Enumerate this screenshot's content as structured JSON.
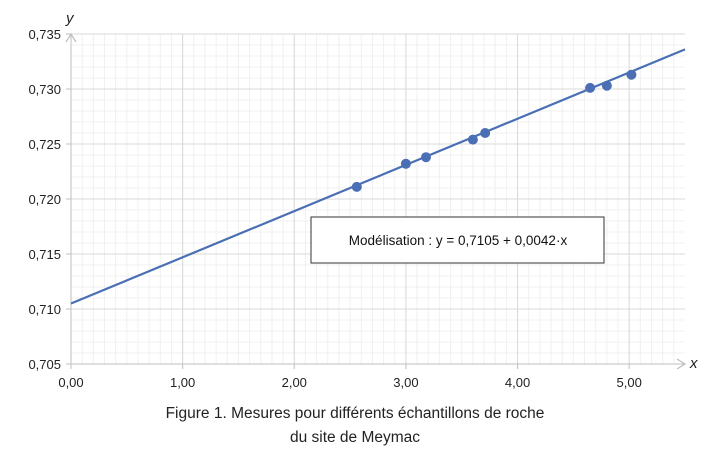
{
  "chart_data": {
    "type": "scatter",
    "xlabel": "x",
    "ylabel": "y",
    "xlim": [
      0,
      5.5
    ],
    "ylim": [
      0.705,
      0.735
    ],
    "x_ticks": [
      0,
      1,
      2,
      3,
      4,
      5
    ],
    "x_tick_labels": [
      "0,00",
      "1,00",
      "2,00",
      "3,00",
      "4,00",
      "5,00"
    ],
    "y_ticks": [
      0.705,
      0.71,
      0.715,
      0.72,
      0.725,
      0.73,
      0.735
    ],
    "y_tick_labels": [
      "0,705",
      "0,710",
      "0,715",
      "0,720",
      "0,725",
      "0,730",
      "0,735"
    ],
    "minor_grid_x_step": 0.1,
    "minor_grid_y_step": 0.001,
    "grid": true,
    "points": {
      "x": [
        2.56,
        3.0,
        3.18,
        3.6,
        3.71,
        4.65,
        4.8,
        5.02
      ],
      "y": [
        0.7211,
        0.7232,
        0.7238,
        0.7254,
        0.726,
        0.7301,
        0.7303,
        0.7313
      ]
    },
    "regression": {
      "intercept": 0.7105,
      "slope": 0.0042
    },
    "annotation": "Modélisation :  y = 0,7105 + 0,0042·x",
    "colors": {
      "series": "#4a6fb5",
      "major_grid": "#d9d9d9",
      "minor_grid": "#f0f0f0",
      "axis": "#bfbfbf"
    }
  },
  "caption": {
    "line1": "Figure 1. Mesures pour différents échantillons de roche",
    "line2": "du site de Meymac"
  }
}
